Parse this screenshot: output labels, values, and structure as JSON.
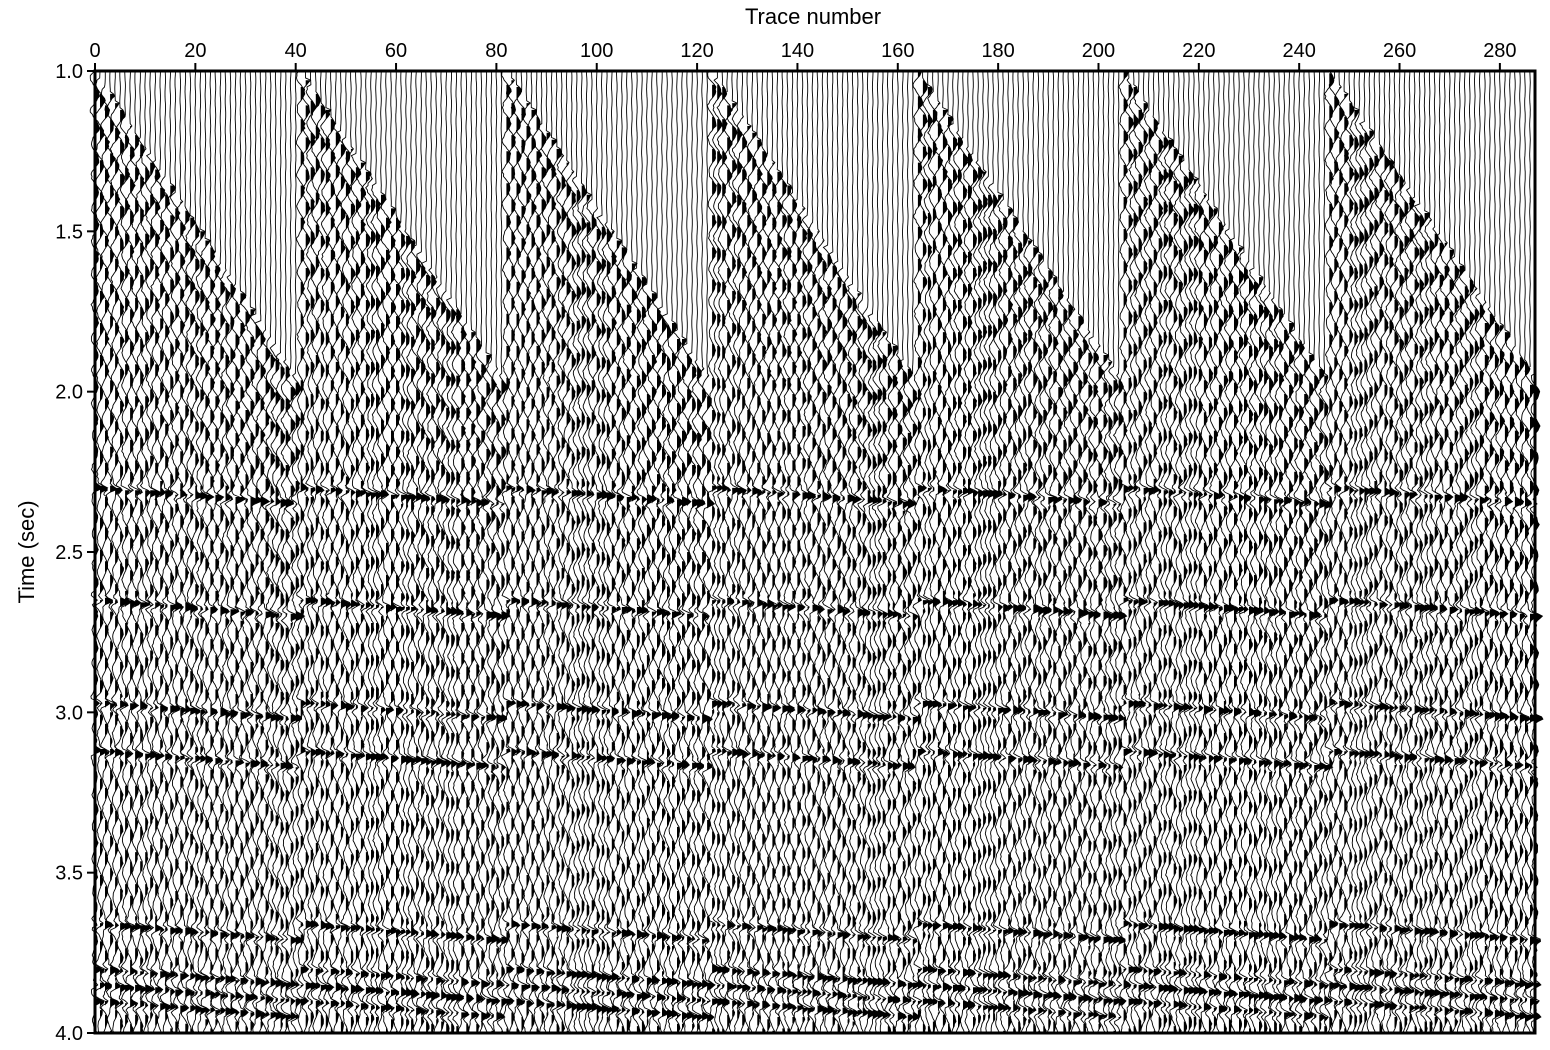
{
  "chart_data": {
    "type": "seismic-wiggle",
    "xlabel": "Trace number",
    "ylabel": "Time (sec)",
    "x_axis_position": "top",
    "xlim": [
      0,
      287
    ],
    "ylim": [
      1.0,
      4.0
    ],
    "y_inverted": true,
    "xticks": [
      "0",
      "20",
      "40",
      "60",
      "80",
      "100",
      "120",
      "140",
      "160",
      "180",
      "200",
      "220",
      "240",
      "260",
      "280"
    ],
    "yticks": [
      "1.0",
      "1.5",
      "2.0",
      "2.5",
      "3.0",
      "3.5",
      "4.0"
    ],
    "num_traces": 288,
    "variable_area_fill": "positive",
    "trace_color": "#000000",
    "background_color": "#ffffff",
    "shot_gathers": [
      {
        "first_trace": 0,
        "last_trace": 40,
        "first_break_near_sec": 1.0,
        "first_break_far_sec": 1.95
      },
      {
        "first_trace": 41,
        "last_trace": 81,
        "first_break_near_sec": 1.0,
        "first_break_far_sec": 1.95
      },
      {
        "first_trace": 82,
        "last_trace": 122,
        "first_break_near_sec": 1.0,
        "first_break_far_sec": 1.95
      },
      {
        "first_trace": 123,
        "last_trace": 163,
        "first_break_near_sec": 1.0,
        "first_break_far_sec": 1.95
      },
      {
        "first_trace": 164,
        "last_trace": 204,
        "first_break_near_sec": 1.0,
        "first_break_far_sec": 1.95
      },
      {
        "first_trace": 205,
        "last_trace": 245,
        "first_break_near_sec": 1.0,
        "first_break_far_sec": 1.95
      },
      {
        "first_trace": 246,
        "last_trace": 287,
        "first_break_near_sec": 1.0,
        "first_break_far_sec": 1.95
      }
    ],
    "reflection_events_sec": [
      2.3,
      2.65,
      2.97,
      3.12,
      3.66,
      3.8,
      3.85,
      3.9
    ],
    "grid": false
  }
}
